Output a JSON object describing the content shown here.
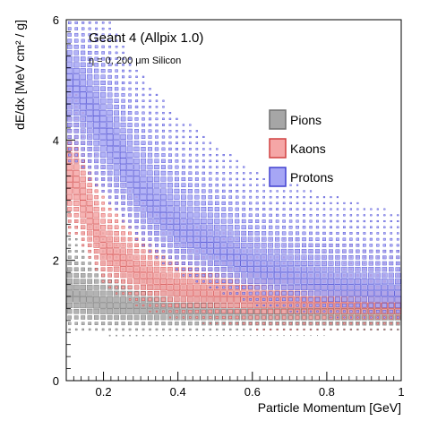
{
  "chart_data": {
    "type": "scatter",
    "subtype": "2d-box-histogram",
    "title": "Geant 4 (Allpix 1.0)",
    "subtitle": "η = 0, 200 μm Silicon",
    "xlabel": "Particle Momentum [GeV]",
    "ylabel": "dE/dx [MeV cm² / g]",
    "xlim": [
      0.1,
      1.0
    ],
    "ylim": [
      0,
      6
    ],
    "x_ticks": [
      0.2,
      0.4,
      0.6,
      0.8,
      1.0
    ],
    "x_tick_labels": [
      "0.2",
      "0.4",
      "0.6",
      "0.8",
      "1"
    ],
    "y_ticks": [
      0,
      2,
      4,
      6
    ],
    "y_tick_labels": [
      "0",
      "2",
      "4",
      "6"
    ],
    "grid": false,
    "legend_position": "center-right",
    "colors": {
      "pions_fill": "#a6a6a6",
      "pions_stroke": "#707070",
      "kaons_fill": "#f5a6a6",
      "kaons_stroke": "#d04040",
      "protons_fill": "#a6a6f5",
      "protons_stroke": "#4040d0",
      "overlap": "#7a3a6a"
    },
    "series": [
      {
        "name": "Pions",
        "description_bands": [
          {
            "x": 0.1,
            "y_peak": 1.45,
            "y_range": [
              0.95,
              2.2
            ]
          },
          {
            "x": 0.2,
            "y_peak": 1.25,
            "y_range": [
              0.9,
              1.9
            ]
          },
          {
            "x": 0.4,
            "y_peak": 1.15,
            "y_range": [
              0.9,
              1.6
            ]
          },
          {
            "x": 0.6,
            "y_peak": 1.12,
            "y_range": [
              0.9,
              1.5
            ]
          },
          {
            "x": 0.8,
            "y_peak": 1.1,
            "y_range": [
              0.9,
              1.5
            ]
          },
          {
            "x": 1.0,
            "y_peak": 1.1,
            "y_range": [
              0.9,
              1.5
            ]
          }
        ]
      },
      {
        "name": "Kaons",
        "description_bands": [
          {
            "x": 0.12,
            "y_peak": 3.4,
            "y_range": [
              2.6,
              4.3
            ]
          },
          {
            "x": 0.2,
            "y_peak": 2.2,
            "y_range": [
              1.7,
              3.0
            ]
          },
          {
            "x": 0.3,
            "y_peak": 1.75,
            "y_range": [
              1.35,
              2.4
            ]
          },
          {
            "x": 0.4,
            "y_peak": 1.5,
            "y_range": [
              1.15,
              2.1
            ]
          },
          {
            "x": 0.6,
            "y_peak": 1.35,
            "y_range": [
              1.0,
              1.85
            ]
          },
          {
            "x": 0.8,
            "y_peak": 1.25,
            "y_range": [
              1.0,
              1.7
            ]
          },
          {
            "x": 1.0,
            "y_peak": 1.2,
            "y_range": [
              1.0,
              1.6
            ]
          }
        ]
      },
      {
        "name": "Protons",
        "description_bands": [
          {
            "x": 0.12,
            "y_peak": 5.0,
            "y_range": [
              3.8,
              6.0
            ]
          },
          {
            "x": 0.2,
            "y_peak": 4.2,
            "y_range": [
              3.2,
              5.6
            ]
          },
          {
            "x": 0.3,
            "y_peak": 3.1,
            "y_range": [
              2.4,
              4.5
            ]
          },
          {
            "x": 0.4,
            "y_peak": 2.5,
            "y_range": [
              1.9,
              3.8
            ]
          },
          {
            "x": 0.6,
            "y_peak": 1.85,
            "y_range": [
              1.4,
              2.9
            ]
          },
          {
            "x": 0.8,
            "y_peak": 1.55,
            "y_range": [
              1.2,
              2.5
            ]
          },
          {
            "x": 1.0,
            "y_peak": 1.4,
            "y_range": [
              1.1,
              2.2
            ]
          }
        ]
      }
    ]
  }
}
